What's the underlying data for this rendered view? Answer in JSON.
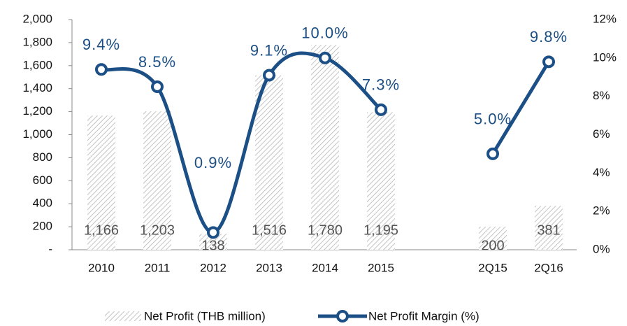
{
  "chart_data": {
    "type": "bar-line",
    "categories": [
      "2010",
      "2011",
      "2012",
      "2013",
      "2014",
      "2015",
      null,
      "2Q15",
      "2Q16"
    ],
    "series": [
      {
        "name": "Net Profit (THB million)",
        "type": "bar",
        "color": "#b0b0b0",
        "values": [
          1166,
          1203,
          138,
          1516,
          1780,
          1195,
          null,
          200,
          381
        ],
        "value_labels": [
          "1,166",
          "1,203",
          "138",
          "1,516",
          "1,780",
          "1,195",
          null,
          "200",
          "381"
        ]
      },
      {
        "name": "Net Profit Margin (%)",
        "type": "line",
        "axis": "y2",
        "color": "#1b4f86",
        "values": [
          9.4,
          8.5,
          0.9,
          9.1,
          10.0,
          7.3,
          null,
          5.0,
          9.8
        ],
        "value_labels": [
          "9.4%",
          "8.5%",
          "0.9%",
          "9.1%",
          "10.0%",
          "7.3%",
          null,
          "5.0%",
          "9.8%"
        ]
      }
    ],
    "ylim": [
      0,
      2000
    ],
    "yticks": [
      {
        "value": 0,
        "label": "-"
      },
      200,
      400,
      600,
      800,
      {
        "value": 1000,
        "label": "1,000"
      },
      {
        "value": 1200,
        "label": "1,200"
      },
      {
        "value": 1400,
        "label": "1,400"
      },
      {
        "value": 1600,
        "label": "1,600"
      },
      {
        "value": 1800,
        "label": "1,800"
      },
      {
        "value": 2000,
        "label": "2,000"
      }
    ],
    "y2lim": [
      0,
      12
    ],
    "y2ticks": [
      {
        "value": 0,
        "label": "0%"
      },
      {
        "value": 2,
        "label": "2%"
      },
      {
        "value": 4,
        "label": "4%"
      },
      {
        "value": 6,
        "label": "6%"
      },
      {
        "value": 8,
        "label": "8%"
      },
      {
        "value": 10,
        "label": "10%"
      },
      {
        "value": 12,
        "label": "12%"
      }
    ],
    "grid": false,
    "legend": "bottom"
  }
}
